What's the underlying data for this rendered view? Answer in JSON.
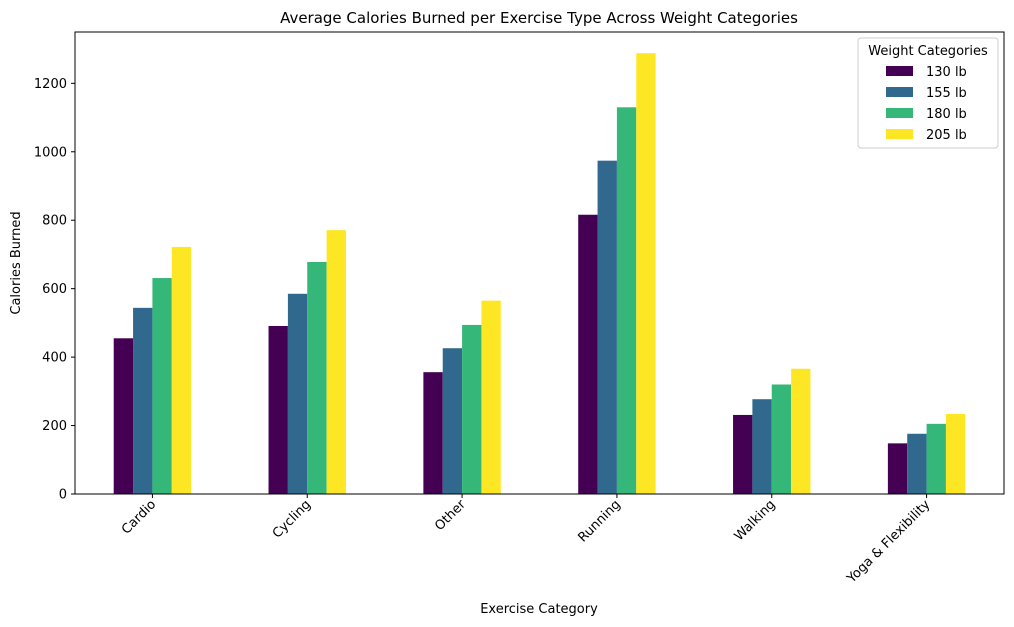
{
  "chart_data": {
    "type": "bar",
    "title": "Average Calories Burned per Exercise Type Across Weight Categories",
    "xlabel": "Exercise Category",
    "ylabel": "Calories Burned",
    "categories": [
      "Cardio",
      "Cycling",
      "Other",
      "Running",
      "Walking",
      "Yoga & Flexibility"
    ],
    "series": [
      {
        "name": "130 lb",
        "color": "#440154",
        "values": [
          455,
          491,
          356,
          816,
          231,
          148
        ]
      },
      {
        "name": "155 lb",
        "color": "#31688e",
        "values": [
          544,
          585,
          426,
          974,
          277,
          176
        ]
      },
      {
        "name": "180 lb",
        "color": "#35b779",
        "values": [
          631,
          678,
          494,
          1130,
          320,
          205
        ]
      },
      {
        "name": "205 lb",
        "color": "#fde725",
        "values": [
          722,
          771,
          565,
          1288,
          366,
          234
        ]
      }
    ],
    "ylim": [
      0,
      1350
    ],
    "yticks": [
      0,
      200,
      400,
      600,
      800,
      1000,
      1200
    ],
    "legend": {
      "title": "Weight Categories",
      "position": "top-right"
    },
    "grid": false
  }
}
